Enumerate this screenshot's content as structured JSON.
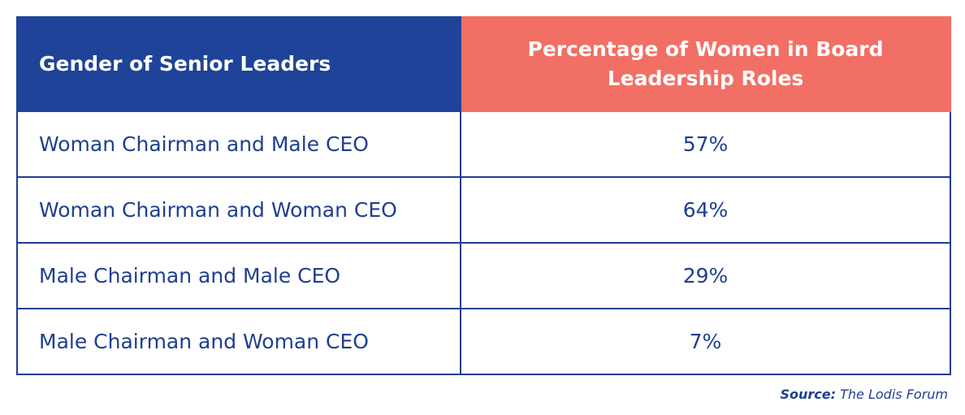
{
  "chart_data": {
    "type": "table",
    "columns": [
      "Gender of Senior Leaders",
      "Percentage of Women in Board Leadership Roles"
    ],
    "categories": [
      "Woman Chairman and Male CEO",
      "Woman Chairman and Woman CEO",
      "Male Chairman and Male CEO",
      "Male Chairman and Woman CEO"
    ],
    "values": [
      "57%",
      "64%",
      "29%",
      "7%"
    ],
    "source_label": "Source:",
    "source_text": "The Lodis Forum"
  },
  "colors": {
    "header_left": "#1f4398",
    "header_right": "#f26f65",
    "text": "#1f3f8f",
    "border": "#1f3f8f"
  }
}
